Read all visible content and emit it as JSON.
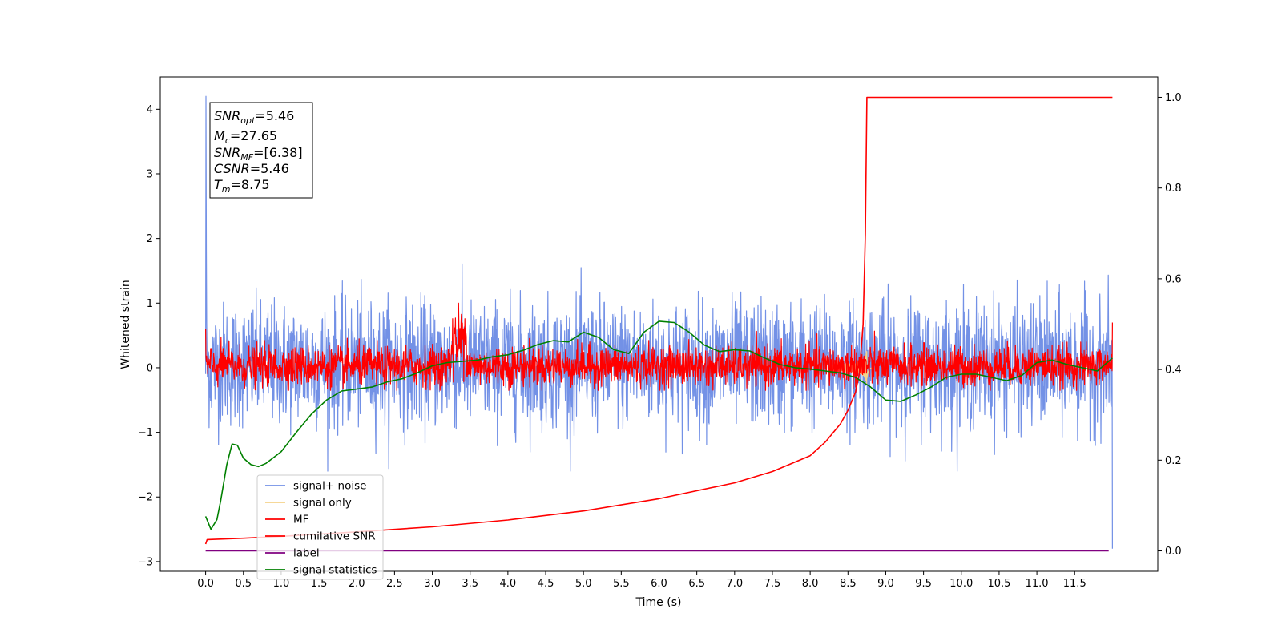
{
  "chart_data": {
    "type": "line",
    "xlabel": "Time (s)",
    "ylabel": "Whitened strain",
    "xlim": [
      -0.6,
      12.6
    ],
    "ylim": [
      -3.15,
      4.5
    ],
    "ylim_right": [
      -0.045,
      1.045
    ],
    "x_ticks": [
      "0.0",
      "0.5",
      "1.0",
      "1.5",
      "2.0",
      "2.5",
      "3.0",
      "3.5",
      "4.0",
      "4.5",
      "5.0",
      "5.5",
      "6.0",
      "6.5",
      "7.0",
      "7.5",
      "8.0",
      "8.5",
      "9.0",
      "9.5",
      "10.0",
      "10.5",
      "11.0",
      "11.5"
    ],
    "y_ticks": [
      "4",
      "3",
      "2",
      "1",
      "0",
      "−1",
      "−2",
      "−3"
    ],
    "y_ticks_right": [
      "1.0",
      "0.8",
      "0.6",
      "0.4",
      "0.2",
      "0.0"
    ],
    "info_box": {
      "snr_opt": {
        "sym": "SNR",
        "sub": "opt",
        "value": "=5.46"
      },
      "mc": {
        "sym": "M",
        "sub": "c",
        "value": "=27.65"
      },
      "snr_mf": {
        "sym": "SNR",
        "sub": "MF",
        "value": "=[6.38]"
      },
      "csnr": {
        "sym": "CSNR",
        "sub": "",
        "value": "=5.46"
      },
      "tm": {
        "sym": "T",
        "sub": "m",
        "value": "=8.75"
      }
    },
    "series": [
      {
        "name": "signal+ noise",
        "color": "#7391e6",
        "axis": "left",
        "style": "noise",
        "range": [
          -0.9,
          1.0
        ],
        "spikes": [
          [
            0.0,
            4.2
          ],
          [
            12.0,
            -2.8
          ]
        ]
      },
      {
        "name": "signal only",
        "color": "#f5d28a",
        "axis": "left",
        "style": "chirp",
        "merger_time": 8.75,
        "peak": 0.5
      },
      {
        "name": "MF",
        "color": "#ff0000",
        "axis": "left",
        "style": "noise",
        "range": [
          -0.25,
          0.3
        ],
        "burst": [
          3.25,
          3.45,
          1.0
        ]
      },
      {
        "name": "cumilative SNR",
        "color": "#ff0000",
        "axis": "right",
        "x": [
          0.0,
          0.02,
          0.5,
          1.0,
          2.0,
          3.0,
          4.0,
          5.0,
          6.0,
          7.0,
          7.5,
          8.0,
          8.2,
          8.4,
          8.5,
          8.6,
          8.65,
          8.7,
          8.73,
          8.75,
          12.0
        ],
        "y": [
          0.015,
          0.025,
          0.028,
          0.032,
          0.042,
          0.053,
          0.068,
          0.088,
          0.115,
          0.15,
          0.175,
          0.21,
          0.24,
          0.28,
          0.31,
          0.35,
          0.39,
          0.5,
          0.7,
          1.0,
          1.0
        ]
      },
      {
        "name": "label",
        "color": "#800080",
        "axis": "right",
        "x": [
          0.0,
          11.95
        ],
        "y": [
          0.0,
          0.0
        ]
      },
      {
        "name": "signal statistics",
        "color": "#008000",
        "axis": "left",
        "x": [
          0.0,
          0.07,
          0.15,
          0.2,
          0.28,
          0.35,
          0.42,
          0.5,
          0.6,
          0.7,
          0.8,
          1.0,
          1.2,
          1.4,
          1.6,
          1.8,
          2.0,
          2.2,
          2.4,
          2.6,
          2.8,
          3.0,
          3.2,
          3.4,
          3.6,
          3.8,
          4.0,
          4.2,
          4.4,
          4.6,
          4.8,
          5.0,
          5.2,
          5.4,
          5.6,
          5.8,
          6.0,
          6.2,
          6.4,
          6.6,
          6.8,
          7.0,
          7.2,
          7.4,
          7.6,
          7.8,
          8.0,
          8.2,
          8.4,
          8.6,
          8.8,
          9.0,
          9.2,
          9.4,
          9.6,
          9.8,
          10.0,
          10.2,
          10.4,
          10.6,
          10.8,
          11.0,
          11.2,
          11.4,
          11.6,
          11.8,
          12.0
        ],
        "y": [
          -2.3,
          -2.5,
          -2.35,
          -2.05,
          -1.5,
          -1.18,
          -1.2,
          -1.4,
          -1.5,
          -1.53,
          -1.48,
          -1.3,
          -1.0,
          -0.72,
          -0.5,
          -0.36,
          -0.33,
          -0.3,
          -0.22,
          -0.17,
          -0.08,
          0.03,
          0.08,
          0.1,
          0.12,
          0.17,
          0.2,
          0.27,
          0.36,
          0.42,
          0.4,
          0.55,
          0.47,
          0.28,
          0.22,
          0.55,
          0.72,
          0.7,
          0.55,
          0.35,
          0.25,
          0.28,
          0.26,
          0.15,
          0.05,
          0.0,
          -0.02,
          -0.05,
          -0.08,
          -0.15,
          -0.3,
          -0.5,
          -0.52,
          -0.42,
          -0.3,
          -0.15,
          -0.1,
          -0.1,
          -0.15,
          -0.2,
          -0.12,
          0.08,
          0.12,
          0.05,
          0.0,
          -0.05,
          0.15
        ]
      }
    ],
    "legend_location": "lower-left"
  }
}
